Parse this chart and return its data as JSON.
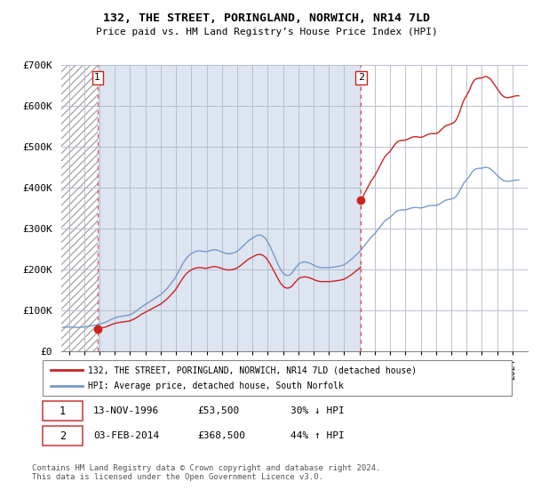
{
  "title": "132, THE STREET, PORINGLAND, NORWICH, NR14 7LD",
  "subtitle": "Price paid vs. HM Land Registry’s House Price Index (HPI)",
  "background_color": "#ffffff",
  "plot_bg_color": "#e8eef8",
  "hatch_color": "#c8c8c8",
  "grid_color": "#b0b8c8",
  "line1_color": "#cc2222",
  "line2_color": "#7799cc",
  "sale1_x": 1996.87,
  "sale1_y": 53500,
  "sale2_x": 2014.09,
  "sale2_y": 368500,
  "sale1_date": "13-NOV-1996",
  "sale1_price": "£53,500",
  "sale1_hpi": "30% ↓ HPI",
  "sale2_date": "03-FEB-2014",
  "sale2_price": "£368,500",
  "sale2_hpi": "44% ↑ HPI",
  "xmin": 1994.5,
  "xmax": 2025.0,
  "ymin": 0,
  "ymax": 700000,
  "yticks": [
    0,
    100000,
    200000,
    300000,
    400000,
    500000,
    600000,
    700000
  ],
  "ytick_labels": [
    "£0",
    "£100K",
    "£200K",
    "£300K",
    "£400K",
    "£500K",
    "£600K",
    "£700K"
  ],
  "legend1_label": "132, THE STREET, PORINGLAND, NORWICH, NR14 7LD (detached house)",
  "legend2_label": "HPI: Average price, detached house, South Norfolk",
  "footer": "Contains HM Land Registry data © Crown copyright and database right 2024.\nThis data is licensed under the Open Government Licence v3.0.",
  "hpi_base_x": 1996.87,
  "hpi_base_val": 78500,
  "hpi_monthly": [
    [
      1994.583,
      58000
    ],
    [
      1994.667,
      58200
    ],
    [
      1994.75,
      58400
    ],
    [
      1994.833,
      58600
    ],
    [
      1994.917,
      58800
    ],
    [
      1995.0,
      59000
    ],
    [
      1995.083,
      58800
    ],
    [
      1995.167,
      58600
    ],
    [
      1995.25,
      58400
    ],
    [
      1995.333,
      58200
    ],
    [
      1995.417,
      58000
    ],
    [
      1995.5,
      57800
    ],
    [
      1995.583,
      57900
    ],
    [
      1995.667,
      58100
    ],
    [
      1995.75,
      58300
    ],
    [
      1995.833,
      58500
    ],
    [
      1995.917,
      58700
    ],
    [
      1996.0,
      59000
    ],
    [
      1996.083,
      59500
    ],
    [
      1996.167,
      60000
    ],
    [
      1996.25,
      60500
    ],
    [
      1996.333,
      61000
    ],
    [
      1996.417,
      61500
    ],
    [
      1996.5,
      62000
    ],
    [
      1996.583,
      62500
    ],
    [
      1996.667,
      63000
    ],
    [
      1996.75,
      63500
    ],
    [
      1996.833,
      64000
    ],
    [
      1996.917,
      64500
    ],
    [
      1996.87,
      65000
    ],
    [
      1997.0,
      66000
    ],
    [
      1997.083,
      67000
    ],
    [
      1997.167,
      68000
    ],
    [
      1997.25,
      69000
    ],
    [
      1997.333,
      70000
    ],
    [
      1997.417,
      71000
    ],
    [
      1997.5,
      72500
    ],
    [
      1997.583,
      74000
    ],
    [
      1997.667,
      75500
    ],
    [
      1997.75,
      77000
    ],
    [
      1997.833,
      78500
    ],
    [
      1997.917,
      80000
    ],
    [
      1998.0,
      81000
    ],
    [
      1998.083,
      82000
    ],
    [
      1998.167,
      83000
    ],
    [
      1998.25,
      84000
    ],
    [
      1998.333,
      84500
    ],
    [
      1998.417,
      85000
    ],
    [
      1998.5,
      85500
    ],
    [
      1998.583,
      86000
    ],
    [
      1998.667,
      86500
    ],
    [
      1998.75,
      87000
    ],
    [
      1998.833,
      87500
    ],
    [
      1998.917,
      88000
    ],
    [
      1999.0,
      89000
    ],
    [
      1999.083,
      90500
    ],
    [
      1999.167,
      92000
    ],
    [
      1999.25,
      94000
    ],
    [
      1999.333,
      96000
    ],
    [
      1999.417,
      98000
    ],
    [
      1999.5,
      100500
    ],
    [
      1999.583,
      103000
    ],
    [
      1999.667,
      105500
    ],
    [
      1999.75,
      108000
    ],
    [
      1999.833,
      110000
    ],
    [
      1999.917,
      112000
    ],
    [
      2000.0,
      114000
    ],
    [
      2000.083,
      116000
    ],
    [
      2000.167,
      118000
    ],
    [
      2000.25,
      120000
    ],
    [
      2000.333,
      122000
    ],
    [
      2000.417,
      124000
    ],
    [
      2000.5,
      126000
    ],
    [
      2000.583,
      128000
    ],
    [
      2000.667,
      130000
    ],
    [
      2000.75,
      132000
    ],
    [
      2000.833,
      134000
    ],
    [
      2000.917,
      136000
    ],
    [
      2001.0,
      138000
    ],
    [
      2001.083,
      141000
    ],
    [
      2001.167,
      144000
    ],
    [
      2001.25,
      147000
    ],
    [
      2001.333,
      150000
    ],
    [
      2001.417,
      153000
    ],
    [
      2001.5,
      157000
    ],
    [
      2001.583,
      161000
    ],
    [
      2001.667,
      165000
    ],
    [
      2001.75,
      169000
    ],
    [
      2001.833,
      173000
    ],
    [
      2001.917,
      177000
    ],
    [
      2002.0,
      182000
    ],
    [
      2002.083,
      188000
    ],
    [
      2002.167,
      194000
    ],
    [
      2002.25,
      200000
    ],
    [
      2002.333,
      206000
    ],
    [
      2002.417,
      212000
    ],
    [
      2002.5,
      217000
    ],
    [
      2002.583,
      222000
    ],
    [
      2002.667,
      226000
    ],
    [
      2002.75,
      230000
    ],
    [
      2002.833,
      233000
    ],
    [
      2002.917,
      236000
    ],
    [
      2003.0,
      238000
    ],
    [
      2003.083,
      240000
    ],
    [
      2003.167,
      242000
    ],
    [
      2003.25,
      243000
    ],
    [
      2003.333,
      244000
    ],
    [
      2003.417,
      244500
    ],
    [
      2003.5,
      245000
    ],
    [
      2003.583,
      245000
    ],
    [
      2003.667,
      244500
    ],
    [
      2003.75,
      244000
    ],
    [
      2003.833,
      243500
    ],
    [
      2003.917,
      243000
    ],
    [
      2004.0,
      243000
    ],
    [
      2004.083,
      244000
    ],
    [
      2004.167,
      245000
    ],
    [
      2004.25,
      246000
    ],
    [
      2004.333,
      247000
    ],
    [
      2004.417,
      247500
    ],
    [
      2004.5,
      248000
    ],
    [
      2004.583,
      247500
    ],
    [
      2004.667,
      247000
    ],
    [
      2004.75,
      246000
    ],
    [
      2004.833,
      245000
    ],
    [
      2004.917,
      244000
    ],
    [
      2005.0,
      242500
    ],
    [
      2005.083,
      241000
    ],
    [
      2005.167,
      240000
    ],
    [
      2005.25,
      239000
    ],
    [
      2005.333,
      238500
    ],
    [
      2005.417,
      238000
    ],
    [
      2005.5,
      238000
    ],
    [
      2005.583,
      238500
    ],
    [
      2005.667,
      239000
    ],
    [
      2005.75,
      240000
    ],
    [
      2005.833,
      241000
    ],
    [
      2005.917,
      242000
    ],
    [
      2006.0,
      244000
    ],
    [
      2006.083,
      246500
    ],
    [
      2006.167,
      249000
    ],
    [
      2006.25,
      252000
    ],
    [
      2006.333,
      255000
    ],
    [
      2006.417,
      258000
    ],
    [
      2006.5,
      261000
    ],
    [
      2006.583,
      264000
    ],
    [
      2006.667,
      267000
    ],
    [
      2006.75,
      270000
    ],
    [
      2006.833,
      272000
    ],
    [
      2006.917,
      274000
    ],
    [
      2007.0,
      276000
    ],
    [
      2007.083,
      278000
    ],
    [
      2007.167,
      280000
    ],
    [
      2007.25,
      282000
    ],
    [
      2007.333,
      283000
    ],
    [
      2007.417,
      283500
    ],
    [
      2007.5,
      284000
    ],
    [
      2007.583,
      283000
    ],
    [
      2007.667,
      281000
    ],
    [
      2007.75,
      279000
    ],
    [
      2007.833,
      276000
    ],
    [
      2007.917,
      272000
    ],
    [
      2008.0,
      267000
    ],
    [
      2008.083,
      261000
    ],
    [
      2008.167,
      255000
    ],
    [
      2008.25,
      248000
    ],
    [
      2008.333,
      241000
    ],
    [
      2008.417,
      234000
    ],
    [
      2008.5,
      227000
    ],
    [
      2008.583,
      220000
    ],
    [
      2008.667,
      213000
    ],
    [
      2008.75,
      206000
    ],
    [
      2008.833,
      200000
    ],
    [
      2008.917,
      195000
    ],
    [
      2009.0,
      191000
    ],
    [
      2009.083,
      188000
    ],
    [
      2009.167,
      186000
    ],
    [
      2009.25,
      185000
    ],
    [
      2009.333,
      185000
    ],
    [
      2009.417,
      186000
    ],
    [
      2009.5,
      188000
    ],
    [
      2009.583,
      191000
    ],
    [
      2009.667,
      195000
    ],
    [
      2009.75,
      200000
    ],
    [
      2009.833,
      204000
    ],
    [
      2009.917,
      208000
    ],
    [
      2010.0,
      212000
    ],
    [
      2010.083,
      214000
    ],
    [
      2010.167,
      216000
    ],
    [
      2010.25,
      217000
    ],
    [
      2010.333,
      217500
    ],
    [
      2010.417,
      218000
    ],
    [
      2010.5,
      217500
    ],
    [
      2010.583,
      217000
    ],
    [
      2010.667,
      216000
    ],
    [
      2010.75,
      215000
    ],
    [
      2010.833,
      213500
    ],
    [
      2010.917,
      212000
    ],
    [
      2011.0,
      210000
    ],
    [
      2011.083,
      208500
    ],
    [
      2011.167,
      207000
    ],
    [
      2011.25,
      206000
    ],
    [
      2011.333,
      205000
    ],
    [
      2011.417,
      204500
    ],
    [
      2011.5,
      204000
    ],
    [
      2011.583,
      204000
    ],
    [
      2011.667,
      204000
    ],
    [
      2011.75,
      204000
    ],
    [
      2011.833,
      204000
    ],
    [
      2011.917,
      204000
    ],
    [
      2012.0,
      204000
    ],
    [
      2012.083,
      204000
    ],
    [
      2012.167,
      204500
    ],
    [
      2012.25,
      205000
    ],
    [
      2012.333,
      205500
    ],
    [
      2012.417,
      206000
    ],
    [
      2012.5,
      206500
    ],
    [
      2012.583,
      207000
    ],
    [
      2012.667,
      207500
    ],
    [
      2012.75,
      208000
    ],
    [
      2012.833,
      209000
    ],
    [
      2012.917,
      210000
    ],
    [
      2013.0,
      211000
    ],
    [
      2013.083,
      213000
    ],
    [
      2013.167,
      215000
    ],
    [
      2013.25,
      217500
    ],
    [
      2013.333,
      220000
    ],
    [
      2013.417,
      222500
    ],
    [
      2013.5,
      225000
    ],
    [
      2013.583,
      228000
    ],
    [
      2013.667,
      231000
    ],
    [
      2013.75,
      234000
    ],
    [
      2013.833,
      237000
    ],
    [
      2013.917,
      240000
    ],
    [
      2014.0,
      243000
    ],
    [
      2014.083,
      246500
    ],
    [
      2014.167,
      250000
    ],
    [
      2014.25,
      254000
    ],
    [
      2014.333,
      258000
    ],
    [
      2014.417,
      262000
    ],
    [
      2014.5,
      266000
    ],
    [
      2014.583,
      270000
    ],
    [
      2014.667,
      274000
    ],
    [
      2014.75,
      278000
    ],
    [
      2014.833,
      281000
    ],
    [
      2014.917,
      284000
    ],
    [
      2015.0,
      287000
    ],
    [
      2015.083,
      291000
    ],
    [
      2015.167,
      295000
    ],
    [
      2015.25,
      299000
    ],
    [
      2015.333,
      303000
    ],
    [
      2015.417,
      307000
    ],
    [
      2015.5,
      311000
    ],
    [
      2015.583,
      315000
    ],
    [
      2015.667,
      318000
    ],
    [
      2015.75,
      321000
    ],
    [
      2015.833,
      323000
    ],
    [
      2015.917,
      325000
    ],
    [
      2016.0,
      327000
    ],
    [
      2016.083,
      330000
    ],
    [
      2016.167,
      333000
    ],
    [
      2016.25,
      336000
    ],
    [
      2016.333,
      339000
    ],
    [
      2016.417,
      341000
    ],
    [
      2016.5,
      343000
    ],
    [
      2016.583,
      344000
    ],
    [
      2016.667,
      344500
    ],
    [
      2016.75,
      345000
    ],
    [
      2016.833,
      345000
    ],
    [
      2016.917,
      345000
    ],
    [
      2017.0,
      345500
    ],
    [
      2017.083,
      346000
    ],
    [
      2017.167,
      347000
    ],
    [
      2017.25,
      348000
    ],
    [
      2017.333,
      349000
    ],
    [
      2017.417,
      350000
    ],
    [
      2017.5,
      350500
    ],
    [
      2017.583,
      351000
    ],
    [
      2017.667,
      351000
    ],
    [
      2017.75,
      351000
    ],
    [
      2017.833,
      350500
    ],
    [
      2017.917,
      350000
    ],
    [
      2018.0,
      350000
    ],
    [
      2018.083,
      350500
    ],
    [
      2018.167,
      351000
    ],
    [
      2018.25,
      352000
    ],
    [
      2018.333,
      353000
    ],
    [
      2018.417,
      354000
    ],
    [
      2018.5,
      355000
    ],
    [
      2018.583,
      355500
    ],
    [
      2018.667,
      356000
    ],
    [
      2018.75,
      356000
    ],
    [
      2018.833,
      356000
    ],
    [
      2018.917,
      356000
    ],
    [
      2019.0,
      356000
    ],
    [
      2019.083,
      357000
    ],
    [
      2019.167,
      358000
    ],
    [
      2019.25,
      360000
    ],
    [
      2019.333,
      362000
    ],
    [
      2019.417,
      364000
    ],
    [
      2019.5,
      366000
    ],
    [
      2019.583,
      368000
    ],
    [
      2019.667,
      369000
    ],
    [
      2019.75,
      370000
    ],
    [
      2019.833,
      370500
    ],
    [
      2019.917,
      371000
    ],
    [
      2020.0,
      372000
    ],
    [
      2020.083,
      373000
    ],
    [
      2020.167,
      374000
    ],
    [
      2020.25,
      376000
    ],
    [
      2020.333,
      379000
    ],
    [
      2020.417,
      383000
    ],
    [
      2020.5,
      388000
    ],
    [
      2020.583,
      394000
    ],
    [
      2020.667,
      400000
    ],
    [
      2020.75,
      406000
    ],
    [
      2020.833,
      411000
    ],
    [
      2020.917,
      415000
    ],
    [
      2021.0,
      418000
    ],
    [
      2021.083,
      422000
    ],
    [
      2021.167,
      426000
    ],
    [
      2021.25,
      431000
    ],
    [
      2021.333,
      436000
    ],
    [
      2021.417,
      440000
    ],
    [
      2021.5,
      443000
    ],
    [
      2021.583,
      445000
    ],
    [
      2021.667,
      446000
    ],
    [
      2021.75,
      446500
    ],
    [
      2021.833,
      447000
    ],
    [
      2021.917,
      447000
    ],
    [
      2022.0,
      447000
    ],
    [
      2022.083,
      448000
    ],
    [
      2022.167,
      449000
    ],
    [
      2022.25,
      449500
    ],
    [
      2022.333,
      449000
    ],
    [
      2022.417,
      448000
    ],
    [
      2022.5,
      447000
    ],
    [
      2022.583,
      445000
    ],
    [
      2022.667,
      442000
    ],
    [
      2022.75,
      439000
    ],
    [
      2022.833,
      436000
    ],
    [
      2022.917,
      433000
    ],
    [
      2023.0,
      430000
    ],
    [
      2023.083,
      427000
    ],
    [
      2023.167,
      424000
    ],
    [
      2023.25,
      421000
    ],
    [
      2023.333,
      419000
    ],
    [
      2023.417,
      417000
    ],
    [
      2023.5,
      416000
    ],
    [
      2023.583,
      415000
    ],
    [
      2023.667,
      415000
    ],
    [
      2023.75,
      415000
    ],
    [
      2023.833,
      415500
    ],
    [
      2023.917,
      416000
    ],
    [
      2024.0,
      416500
    ],
    [
      2024.083,
      417000
    ],
    [
      2024.167,
      417500
    ],
    [
      2024.25,
      418000
    ],
    [
      2024.333,
      418000
    ],
    [
      2024.417,
      418000
    ]
  ]
}
